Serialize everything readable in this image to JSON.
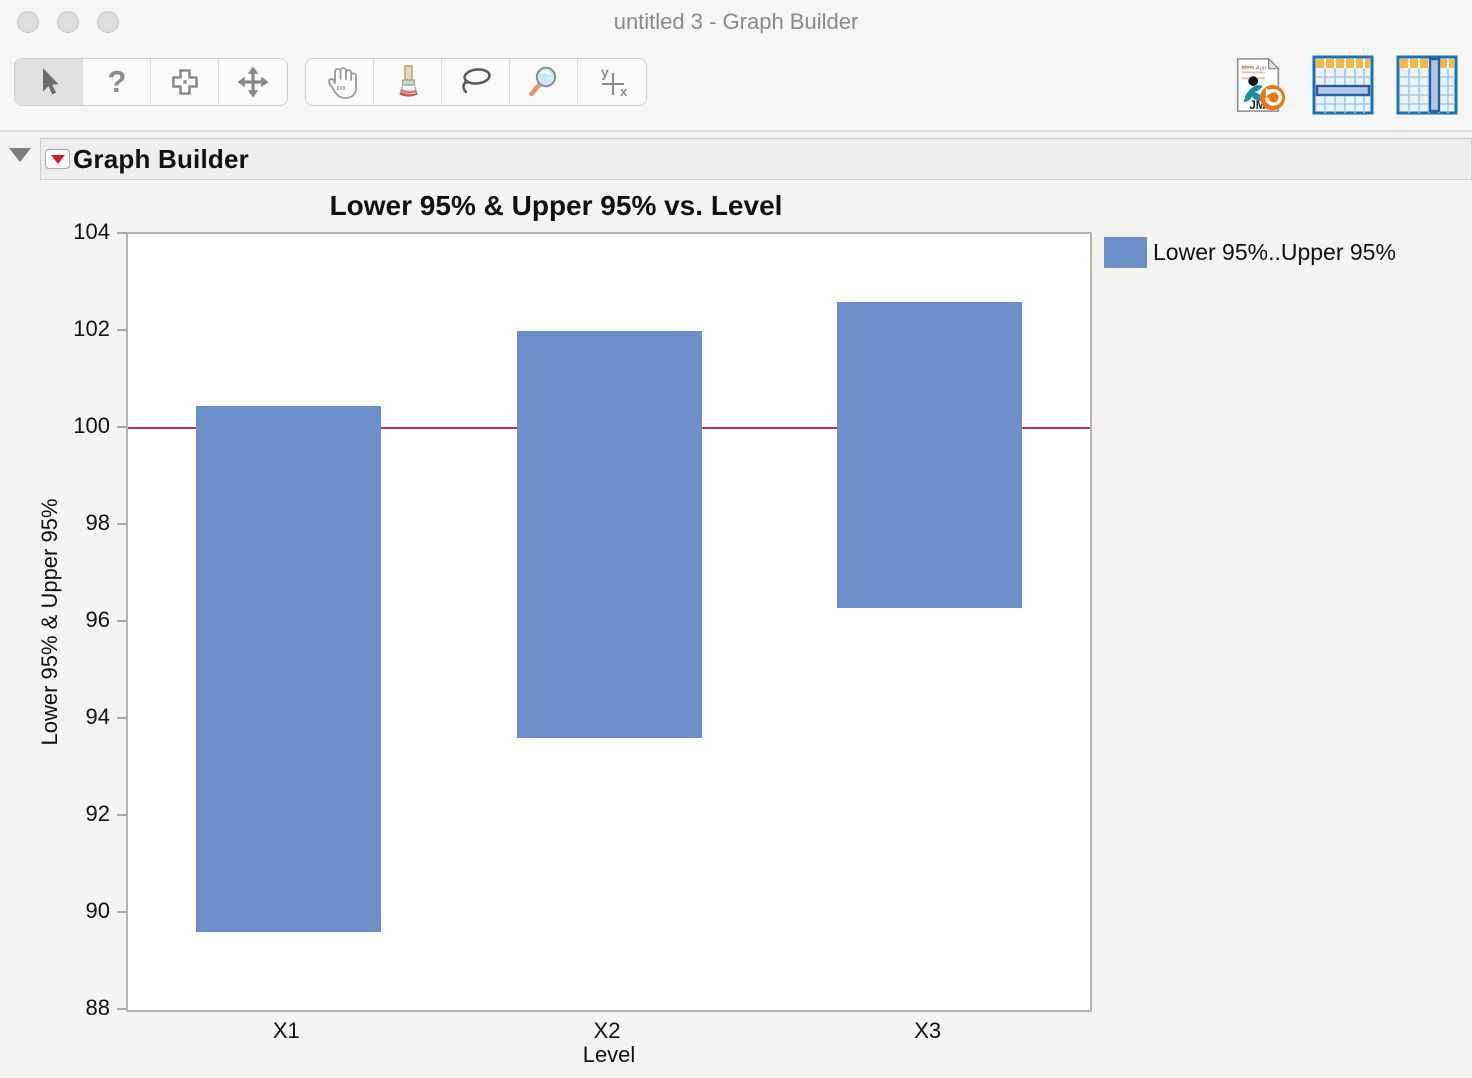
{
  "window": {
    "title": "untitled 3 - Graph Builder"
  },
  "toolbar": {
    "group1": [
      "arrow-tool",
      "help-tool",
      "selection-tool",
      "move-tool"
    ],
    "group2": [
      "grabber-tool",
      "brush-tool",
      "lasso-tool",
      "magnifier-tool",
      "axis-tool"
    ],
    "selected_tool": "arrow-tool",
    "right": [
      "jmp-data-table-revert",
      "select-rows-table",
      "select-columns-table"
    ]
  },
  "outline": {
    "title": "Graph Builder"
  },
  "chart_data": {
    "type": "bar",
    "subtype": "range-bar",
    "title": "Lower 95% & Upper 95% vs. Level",
    "xlabel": "Level",
    "ylabel": "Lower 95% & Upper 95%",
    "categories": [
      "X1",
      "X2",
      "X3"
    ],
    "series": [
      {
        "name": "Lower 95%..Upper 95%",
        "lower": [
          89.6,
          93.6,
          96.3
        ],
        "upper": [
          100.45,
          102.0,
          102.6
        ]
      }
    ],
    "ylim": [
      88,
      104
    ],
    "yticks": [
      88,
      90,
      92,
      94,
      96,
      98,
      100,
      102,
      104
    ],
    "reference_line": {
      "value": 100,
      "color": "#b23450"
    },
    "bar_color": "#6c8ec9",
    "grid": false,
    "legend": {
      "label": "Lower 95%..Upper 95%",
      "position": "right",
      "swatch_color": "#6c8ec9"
    }
  }
}
